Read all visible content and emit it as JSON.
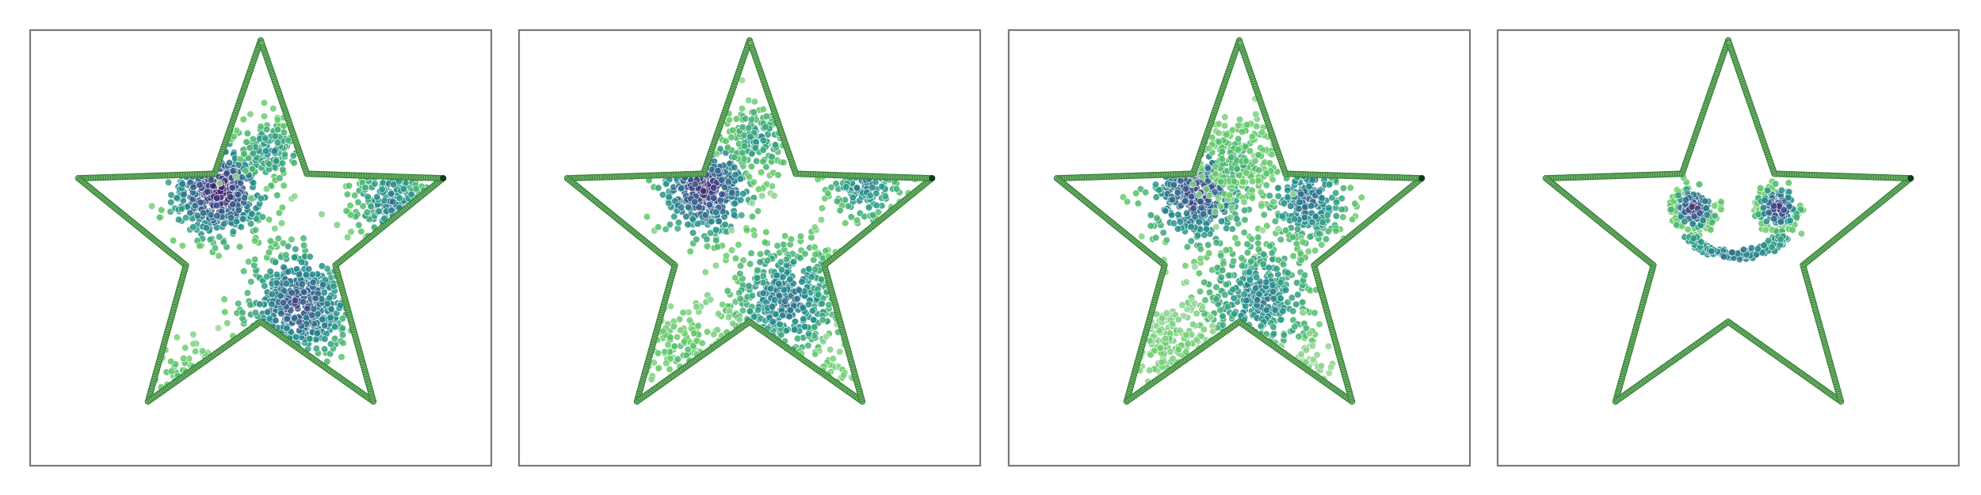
{
  "figure": {
    "panel_count": 4,
    "ticks": "none",
    "labels": "none"
  },
  "colors": {
    "star_outline_fill": "#6fae6a",
    "star_outline_edge": "#2e7d32",
    "frame": "#7a7a7a",
    "point_edge": "#ffffff",
    "colormap": [
      "#440154",
      "#3b528b",
      "#21918c",
      "#5ec962",
      "#a8dbab"
    ]
  },
  "chart_data": [
    {
      "type": "scatter",
      "title": "",
      "xlabel": "",
      "ylabel": "",
      "xlim": [
        -1.15,
        1.15
      ],
      "ylim": [
        -1.15,
        1.15
      ],
      "outline": {
        "shape": "five-pointed star",
        "outer_radius": 1.0,
        "inner_radius": 0.41,
        "points_per_edge": 55
      },
      "clusters": [
        {
          "center": [
            -0.22,
            0.25
          ],
          "spread": 0.12,
          "n": 520,
          "density": 0.95
        },
        {
          "center": [
            0.2,
            -0.32
          ],
          "spread": 0.14,
          "n": 560,
          "density": 0.8
        },
        {
          "center": [
            0.05,
            0.45
          ],
          "spread": 0.09,
          "n": 150,
          "density": 0.55
        },
        {
          "center": [
            0.68,
            0.2
          ],
          "spread": 0.11,
          "n": 260,
          "density": 0.6
        },
        {
          "center": [
            -0.4,
            -0.72
          ],
          "spread": 0.1,
          "n": 120,
          "density": 0.35
        }
      ]
    },
    {
      "type": "scatter",
      "title": "",
      "xlabel": "",
      "ylabel": "",
      "xlim": [
        -1.15,
        1.15
      ],
      "ylim": [
        -1.15,
        1.15
      ],
      "outline": {
        "shape": "five-pointed star",
        "outer_radius": 1.0,
        "inner_radius": 0.41,
        "points_per_edge": 55
      },
      "clusters": [
        {
          "center": [
            -0.23,
            0.26
          ],
          "spread": 0.12,
          "n": 470,
          "density": 0.9
        },
        {
          "center": [
            0.2,
            -0.3
          ],
          "spread": 0.15,
          "n": 470,
          "density": 0.65
        },
        {
          "center": [
            0.05,
            0.5
          ],
          "spread": 0.1,
          "n": 170,
          "density": 0.5
        },
        {
          "center": [
            0.6,
            0.28
          ],
          "spread": 0.1,
          "n": 190,
          "density": 0.6
        },
        {
          "center": [
            -0.35,
            -0.55
          ],
          "spread": 0.12,
          "n": 170,
          "density": 0.3
        },
        {
          "center": [
            0.4,
            -0.75
          ],
          "spread": 0.1,
          "n": 110,
          "density": 0.3
        }
      ]
    },
    {
      "type": "scatter",
      "title": "",
      "xlabel": "",
      "ylabel": "",
      "xlim": [
        -1.15,
        1.15
      ],
      "ylim": [
        -1.15,
        1.15
      ],
      "outline": {
        "shape": "five-pointed star",
        "outer_radius": 1.0,
        "inner_radius": 0.41,
        "points_per_edge": 55
      },
      "clusters": [
        {
          "center": [
            -0.22,
            0.24
          ],
          "spread": 0.13,
          "n": 420,
          "density": 0.85
        },
        {
          "center": [
            0.35,
            0.2
          ],
          "spread": 0.11,
          "n": 260,
          "density": 0.7
        },
        {
          "center": [
            0.1,
            -0.3
          ],
          "spread": 0.16,
          "n": 440,
          "density": 0.6
        },
        {
          "center": [
            0.0,
            0.4
          ],
          "spread": 0.12,
          "n": 220,
          "density": 0.35
        },
        {
          "center": [
            -0.35,
            -0.55
          ],
          "spread": 0.12,
          "n": 220,
          "density": 0.2
        },
        {
          "center": [
            0.3,
            -0.7
          ],
          "spread": 0.11,
          "n": 150,
          "density": 0.15
        }
      ]
    },
    {
      "type": "scatter",
      "title": "",
      "xlabel": "",
      "ylabel": "",
      "xlim": [
        -1.15,
        1.15
      ],
      "ylim": [
        -1.15,
        1.15
      ],
      "outline": {
        "shape": "five-pointed star",
        "outer_radius": 1.0,
        "inner_radius": 0.41,
        "points_per_edge": 55
      },
      "smiley": {
        "left_eye": {
          "center": [
            -0.18,
            0.16
          ],
          "spread": 0.045,
          "n": 140,
          "density": 0.9
        },
        "right_eye": {
          "center": [
            0.26,
            0.16
          ],
          "spread": 0.045,
          "n": 140,
          "density": 0.9
        },
        "eye_rings": {
          "radius": 0.11,
          "n": 70,
          "density": 0.15
        },
        "mouth": {
          "center": [
            0.04,
            -0.05
          ],
          "radius": 0.26,
          "angle_start": 200,
          "angle_end": 340,
          "n": 230,
          "density": 0.45
        }
      }
    }
  ]
}
